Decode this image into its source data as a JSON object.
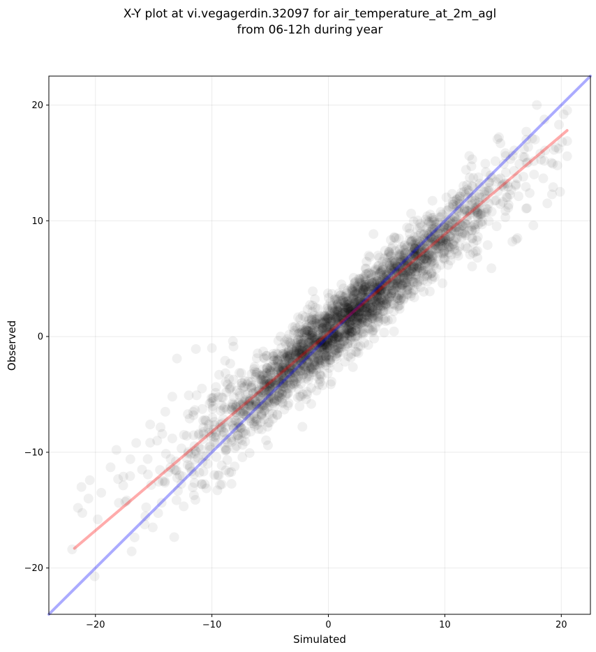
{
  "chart_data": {
    "type": "scatter",
    "title_lines": [
      "X-Y plot at vi.vegagerdin.32097 for air_temperature_at_2m_agl",
      "from 06-12h during year"
    ],
    "xlabel": "Simulated",
    "ylabel": "Observed",
    "xlim": [
      -24,
      22.5
    ],
    "ylim": [
      -24,
      22.5
    ],
    "xticks": [
      -20,
      -10,
      0,
      10,
      20
    ],
    "yticks": [
      -20,
      -10,
      0,
      10,
      20
    ],
    "tick_labels": [
      "−20",
      "−10",
      "0",
      "10",
      "20"
    ],
    "grid": true,
    "points_description_count": 1,
    "scatter_color": "#000000",
    "scatter_opacity": 0.06,
    "sample_points": [
      [
        -21.5,
        -14.8
      ],
      [
        -21.2,
        -13.0
      ],
      [
        -20.6,
        -14.0
      ],
      [
        -19.8,
        -15.8
      ],
      [
        -19.5,
        -13.5
      ],
      [
        -18.7,
        -11.3
      ],
      [
        -18.2,
        -9.8
      ],
      [
        -17.6,
        -12.1
      ],
      [
        -17.0,
        -10.6
      ],
      [
        -16.5,
        -9.2
      ],
      [
        -16.0,
        -11.5
      ],
      [
        -15.3,
        -7.6
      ],
      [
        -14.7,
        -9.0
      ],
      [
        -14.0,
        -6.5
      ],
      [
        -13.4,
        -5.2
      ],
      [
        -13.0,
        -1.9
      ],
      [
        -12.4,
        -8.5
      ],
      [
        -11.9,
        -11.2
      ],
      [
        -11.2,
        -10.5
      ],
      [
        -10.6,
        -7.2
      ],
      [
        -10.0,
        -1.0
      ],
      [
        -9.4,
        -12.0
      ],
      [
        -8.8,
        -9.8
      ],
      [
        -8.2,
        -0.4
      ],
      [
        -7.7,
        -7.5
      ],
      [
        -7.1,
        -5.0
      ],
      [
        -6.5,
        -4.2
      ],
      [
        -6.0,
        -8.0
      ],
      [
        -5.5,
        -6.4
      ],
      [
        -5.0,
        -3.0
      ],
      [
        -4.4,
        -5.1
      ],
      [
        -3.9,
        -1.5
      ],
      [
        -3.3,
        -2.8
      ],
      [
        -2.7,
        -3.9
      ],
      [
        -2.2,
        1.8
      ],
      [
        -1.6,
        -0.5
      ],
      [
        -1.0,
        -2.2
      ],
      [
        -0.4,
        0.8
      ],
      [
        0.2,
        -0.6
      ],
      [
        0.8,
        1.4
      ],
      [
        1.4,
        2.6
      ],
      [
        2.0,
        0.9
      ],
      [
        2.6,
        3.8
      ],
      [
        3.2,
        1.9
      ],
      [
        3.8,
        4.6
      ],
      [
        4.4,
        3.0
      ],
      [
        5.0,
        6.4
      ],
      [
        5.6,
        4.9
      ],
      [
        6.2,
        7.1
      ],
      [
        6.8,
        5.3
      ],
      [
        7.4,
        8.6
      ],
      [
        8.0,
        6.9
      ],
      [
        8.6,
        9.8
      ],
      [
        9.2,
        7.5
      ],
      [
        9.8,
        4.6
      ],
      [
        10.4,
        11.2
      ],
      [
        11.0,
        9.4
      ],
      [
        11.6,
        13.0
      ],
      [
        12.2,
        10.7
      ],
      [
        12.8,
        6.8
      ],
      [
        13.4,
        12.5
      ],
      [
        14.0,
        5.9
      ],
      [
        14.6,
        13.6
      ],
      [
        15.2,
        10.3
      ],
      [
        15.8,
        8.2
      ],
      [
        16.4,
        14.9
      ],
      [
        17.0,
        17.7
      ],
      [
        17.6,
        9.6
      ],
      [
        18.2,
        15.8
      ],
      [
        18.8,
        11.5
      ],
      [
        19.3,
        12.9
      ],
      [
        19.8,
        18.3
      ],
      [
        20.2,
        19.2
      ],
      [
        17.9,
        20.0
      ],
      [
        16.8,
        16.2
      ]
    ],
    "series": [
      {
        "color": "#0000ff",
        "opacity": 0.33,
        "x": [
          -24,
          22.5
        ],
        "y": [
          -24,
          22.5
        ]
      },
      {
        "color": "#ff0000",
        "opacity": 0.33,
        "x": [
          -21.8,
          20.5
        ],
        "y": [
          -18.3,
          17.8
        ]
      }
    ]
  }
}
